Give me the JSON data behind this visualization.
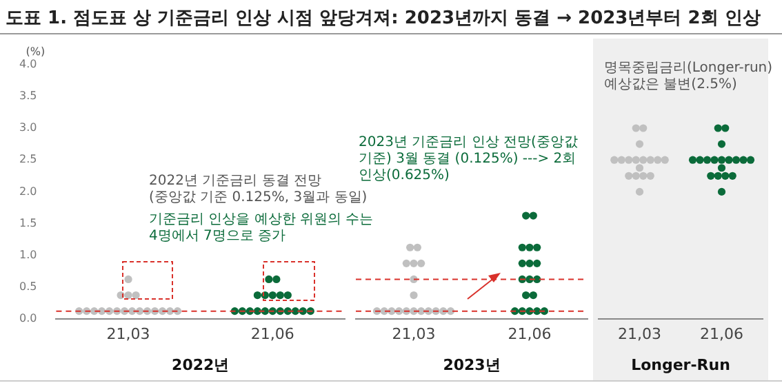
{
  "chart_data": [
    {
      "type": "scatter",
      "title": "도표 1. 점도표 상 기준금리 인상 시점 앞당겨져: 2023년까지 동결 → 2023년부터 2회 인상",
      "ylabel": "(%)",
      "xlabel": "2022년",
      "categories": [
        "21,03",
        "21,06"
      ],
      "ylim": [
        0,
        4
      ],
      "yticks": [
        {
          "value": 0,
          "label": "0.0"
        },
        0.5,
        {
          "value": 1,
          "label": "1.0"
        },
        1.5,
        {
          "value": 2,
          "label": "2.0"
        },
        2.5,
        {
          "value": 3,
          "label": "3.0"
        },
        3.5,
        {
          "value": 4,
          "label": "4.0"
        }
      ],
      "grid": false,
      "legend": false,
      "marker": "circle",
      "series": [
        {
          "color": "#c0c0c0",
          "x": [
            "21,03",
            "21,03",
            "21,03",
            "21,03",
            "21,03",
            "21,03",
            "21,03",
            "21,03",
            "21,03",
            "21,03",
            "21,03",
            "21,03",
            "21,03",
            "21,03",
            "21,03",
            "21,03",
            "21,03",
            "21,03"
          ],
          "values": [
            0.125,
            0.125,
            0.125,
            0.125,
            0.125,
            0.125,
            0.125,
            0.125,
            0.125,
            0.125,
            0.125,
            0.125,
            0.125,
            0.125,
            0.375,
            0.375,
            0.375,
            0.625
          ]
        },
        {
          "color": "#0b6b3a",
          "x": [
            "21,06",
            "21,06",
            "21,06",
            "21,06",
            "21,06",
            "21,06",
            "21,06",
            "21,06",
            "21,06",
            "21,06",
            "21,06",
            "21,06",
            "21,06",
            "21,06",
            "21,06",
            "21,06",
            "21,06",
            "21,06"
          ],
          "values": [
            0.125,
            0.125,
            0.125,
            0.125,
            0.125,
            0.125,
            0.125,
            0.125,
            0.125,
            0.125,
            0.125,
            0.375,
            0.375,
            0.375,
            0.375,
            0.375,
            0.625,
            0.625
          ]
        }
      ],
      "ref_lines": [
        {
          "axis": "y",
          "value": 0.125,
          "color": "#d9312b",
          "line_style": "dashed"
        }
      ],
      "annotations": [
        "2022년  기준금리 동결 전망\n(중앙값 기준 0.125%, 3월과 동일)",
        "기준금리 인상을 예상한 위원의 수는\n4명에서 7명으로 증가"
      ]
    },
    {
      "type": "scatter",
      "xlabel": "2023년",
      "categories": [
        "21,03",
        "21,06"
      ],
      "ylim": [
        0,
        4
      ],
      "tick_labels": "x",
      "grid": false,
      "legend": false,
      "marker": "circle",
      "series": [
        {
          "color": "#c0c0c0",
          "x": [
            "21,03",
            "21,03",
            "21,03",
            "21,03",
            "21,03",
            "21,03",
            "21,03",
            "21,03",
            "21,03",
            "21,03",
            "21,03",
            "21,03",
            "21,03",
            "21,03",
            "21,03",
            "21,03",
            "21,03",
            "21,03"
          ],
          "values": [
            0.125,
            0.125,
            0.125,
            0.125,
            0.125,
            0.125,
            0.125,
            0.125,
            0.125,
            0.125,
            0.125,
            0.375,
            0.625,
            0.875,
            0.875,
            0.875,
            1.125,
            1.125
          ]
        },
        {
          "color": "#0b6b3a",
          "x": [
            "21,06",
            "21,06",
            "21,06",
            "21,06",
            "21,06",
            "21,06",
            "21,06",
            "21,06",
            "21,06",
            "21,06",
            "21,06",
            "21,06",
            "21,06",
            "21,06",
            "21,06",
            "21,06",
            "21,06",
            "21,06"
          ],
          "values": [
            0.125,
            0.125,
            0.125,
            0.125,
            0.125,
            0.375,
            0.375,
            0.625,
            0.625,
            0.625,
            0.875,
            0.875,
            0.875,
            1.125,
            1.125,
            1.125,
            1.625,
            1.625
          ]
        }
      ],
      "ref_lines": [
        {
          "axis": "y",
          "value": 0.125,
          "color": "#d9312b",
          "line_style": "dashed"
        },
        {
          "axis": "y",
          "value": 0.625,
          "color": "#d9312b",
          "line_style": "dashed"
        }
      ],
      "annotations": [
        "2023년 기준금리 인상 전망(중앙값 기준) 3월 동결 (0.125%) ---> 2회 인상(0.625%)"
      ]
    },
    {
      "type": "scatter",
      "xlabel": "Longer-Run",
      "categories": [
        "21,03",
        "21,06"
      ],
      "ylim": [
        0,
        4
      ],
      "tick_labels": "x",
      "grid": false,
      "legend": false,
      "marker": "circle",
      "series": [
        {
          "color": "#c0c0c0",
          "x": [
            "21,03",
            "21,03",
            "21,03",
            "21,03",
            "21,03",
            "21,03",
            "21,03",
            "21,03",
            "21,03",
            "21,03",
            "21,03",
            "21,03",
            "21,03",
            "21,03",
            "21,03",
            "21,03",
            "21,03"
          ],
          "values": [
            2.0,
            2.25,
            2.25,
            2.25,
            2.25,
            2.375,
            2.5,
            2.5,
            2.5,
            2.5,
            2.5,
            2.5,
            2.5,
            2.5,
            2.75,
            3.0,
            3.0
          ]
        },
        {
          "color": "#0b6b3a",
          "x": [
            "21,06",
            "21,06",
            "21,06",
            "21,06",
            "21,06",
            "21,06",
            "21,06",
            "21,06",
            "21,06",
            "21,06",
            "21,06",
            "21,06",
            "21,06",
            "21,06",
            "21,06",
            "21,06",
            "21,06",
            "21,06"
          ],
          "values": [
            2.0,
            2.25,
            2.25,
            2.25,
            2.25,
            2.375,
            2.5,
            2.5,
            2.5,
            2.5,
            2.5,
            2.5,
            2.5,
            2.5,
            2.5,
            2.75,
            3.0,
            3.0
          ]
        }
      ],
      "annotations": [
        "명목중립금리(Longer-run)\n예상값은 불변(2.5%)"
      ]
    }
  ]
}
